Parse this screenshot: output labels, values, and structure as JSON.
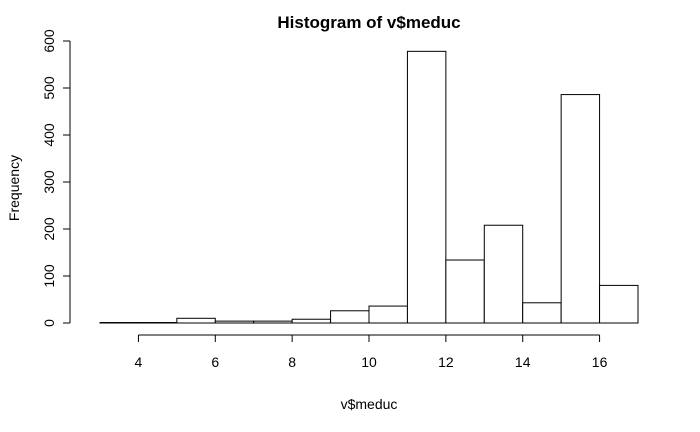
{
  "chart_data": {
    "type": "bar",
    "title": "Histogram of v$meduc",
    "xlabel": "v$meduc",
    "ylabel": "Frequency",
    "bins": [
      {
        "from": 3,
        "to": 4,
        "count": 1
      },
      {
        "from": 4,
        "to": 5,
        "count": 1
      },
      {
        "from": 5,
        "to": 6,
        "count": 10
      },
      {
        "from": 6,
        "to": 7,
        "count": 4
      },
      {
        "from": 7,
        "to": 8,
        "count": 4
      },
      {
        "from": 8,
        "to": 9,
        "count": 8
      },
      {
        "from": 9,
        "to": 10,
        "count": 26
      },
      {
        "from": 10,
        "to": 11,
        "count": 36
      },
      {
        "from": 11,
        "to": 12,
        "count": 578
      },
      {
        "from": 12,
        "to": 13,
        "count": 134
      },
      {
        "from": 13,
        "to": 14,
        "count": 208
      },
      {
        "from": 14,
        "to": 15,
        "count": 43
      },
      {
        "from": 15,
        "to": 16,
        "count": 486
      },
      {
        "from": 16,
        "to": 17,
        "count": 80
      }
    ],
    "xlim": [
      3,
      17
    ],
    "ylim": [
      0,
      600
    ],
    "x_ticks": [
      4,
      6,
      8,
      10,
      12,
      14,
      16
    ],
    "y_ticks": [
      0,
      100,
      200,
      300,
      400,
      500,
      600
    ],
    "bar_fill": "#ffffff",
    "bar_stroke": "#000000",
    "grid": false,
    "legend": "none"
  }
}
